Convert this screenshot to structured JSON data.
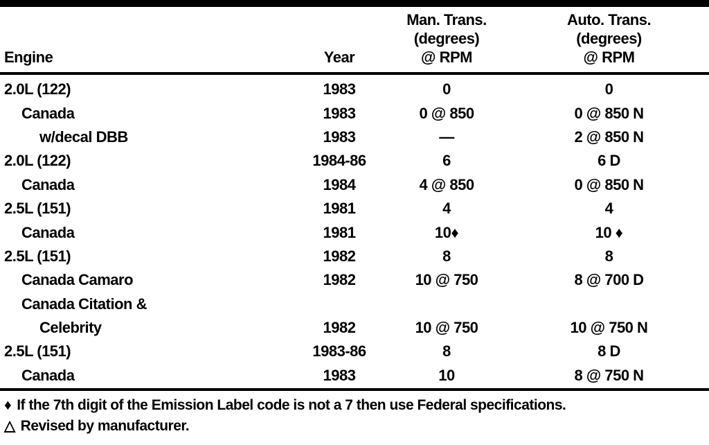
{
  "table": {
    "columns": [
      {
        "id": "engine",
        "label": "Engine"
      },
      {
        "id": "year",
        "label": "Year"
      },
      {
        "id": "man_trans",
        "label_lines": [
          "Man. Trans.",
          "(degrees)",
          "@ RPM"
        ]
      },
      {
        "id": "auto_trans",
        "label_lines": [
          "Auto. Trans.",
          "(degrees)",
          "@ RPM"
        ]
      }
    ],
    "rows": [
      {
        "engine": "2.0L (122)",
        "indent": 0,
        "year": "1983",
        "man": "0",
        "auto": "0"
      },
      {
        "engine": "Canada",
        "indent": 1,
        "year": "1983",
        "man": "0 @ 850",
        "auto": "0 @ 850 N"
      },
      {
        "engine": "w/decal DBB",
        "indent": 2,
        "year": "1983",
        "man": "—",
        "auto": "2 @ 850 N"
      },
      {
        "engine": "2.0L (122)",
        "indent": 0,
        "year": "1984-86",
        "man": "6",
        "auto": "6 D"
      },
      {
        "engine": "Canada",
        "indent": 1,
        "year": "1984",
        "man": "4 @ 850",
        "auto": "0 @ 850 N"
      },
      {
        "engine": "2.5L (151)",
        "indent": 0,
        "year": "1981",
        "man": "4",
        "auto": "4"
      },
      {
        "engine": "Canada",
        "indent": 1,
        "year": "1981",
        "man": "10♦",
        "auto": "10 ♦"
      },
      {
        "engine": "2.5L (151)",
        "indent": 0,
        "year": "1982",
        "man": "8",
        "auto": "8"
      },
      {
        "engine": "Canada Camaro",
        "indent": 1,
        "year": "1982",
        "man": "10 @ 750",
        "auto": "8 @ 700 D"
      },
      {
        "engine": "Canada Citation &",
        "indent": 1,
        "year": "",
        "man": "",
        "auto": ""
      },
      {
        "engine": "Celebrity",
        "indent": 2,
        "year": "1982",
        "man": "10 @ 750",
        "auto": "10 @ 750 N"
      },
      {
        "engine": "2.5L (151)",
        "indent": 0,
        "year": "1983-86",
        "man": "8",
        "auto": "8 D"
      },
      {
        "engine": "Canada",
        "indent": 1,
        "year": "1983",
        "man": "10",
        "auto": "8 @ 750 N"
      }
    ]
  },
  "footnotes": [
    {
      "symbol": "♦",
      "text": "If the 7th digit of the Emission Label code is not a 7 then use Federal specifications."
    },
    {
      "symbol": "△",
      "text": "Revised by manufacturer."
    }
  ],
  "colors": {
    "ink": "#000000",
    "paper": "#ffffff"
  }
}
